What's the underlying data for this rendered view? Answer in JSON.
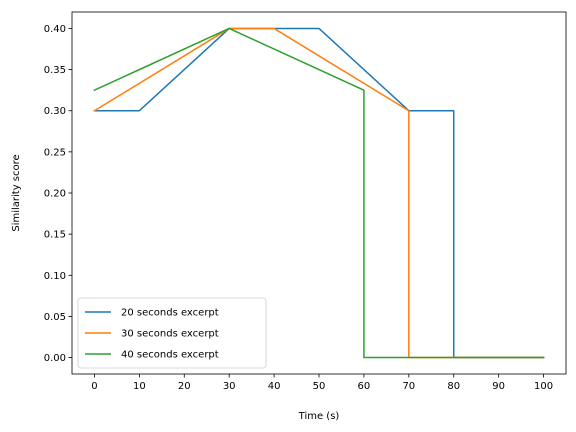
{
  "chart_data": {
    "type": "line",
    "xlabel": "Time (s)",
    "ylabel": "Similarity score",
    "xlim": [
      -5,
      105
    ],
    "ylim": [
      -0.02,
      0.42
    ],
    "x_ticks": [
      0,
      10,
      20,
      30,
      40,
      50,
      60,
      70,
      80,
      90,
      100
    ],
    "y_ticks": [
      0.0,
      0.05,
      0.1,
      0.15,
      0.2,
      0.25,
      0.3,
      0.35,
      0.4
    ],
    "y_tick_labels": [
      "0.00",
      "0.05",
      "0.10",
      "0.15",
      "0.20",
      "0.25",
      "0.30",
      "0.35",
      "0.40"
    ],
    "grid": false,
    "legend_position": "lower-left",
    "series": [
      {
        "name": "20 seconds excerpt",
        "color": "#1f77b4",
        "x": [
          0,
          10,
          30,
          40,
          50,
          70,
          80,
          80,
          90,
          100
        ],
        "y": [
          0.3,
          0.3,
          0.4,
          0.4,
          0.4,
          0.3,
          0.3,
          0.0,
          0.0,
          0.0
        ]
      },
      {
        "name": "30 seconds excerpt",
        "color": "#ff7f0e",
        "x": [
          0,
          30,
          40,
          70,
          70,
          80,
          90,
          100
        ],
        "y": [
          0.3,
          0.4,
          0.4,
          0.3,
          0.0,
          0.0,
          0.0,
          0.0
        ]
      },
      {
        "name": "40 seconds excerpt",
        "color": "#2ca02c",
        "x": [
          0,
          30,
          60,
          60,
          70,
          80,
          90,
          100
        ],
        "y": [
          0.325,
          0.4,
          0.325,
          0.0,
          0.0,
          0.0,
          0.0,
          0.0
        ]
      }
    ]
  }
}
